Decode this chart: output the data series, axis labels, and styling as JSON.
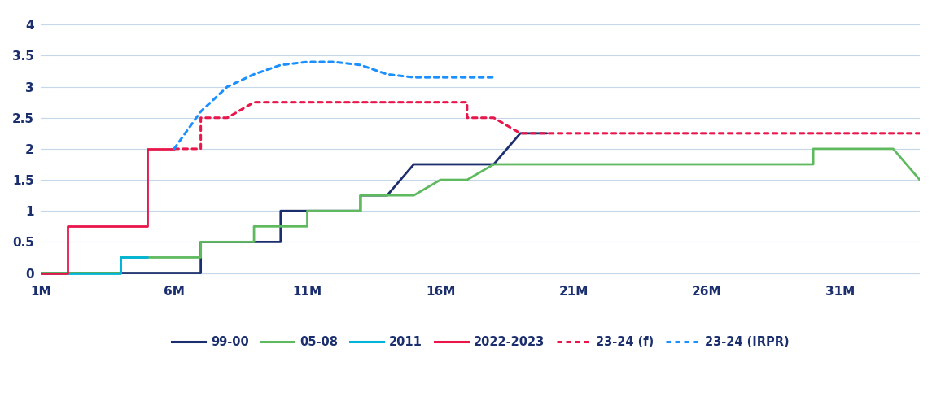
{
  "x_ticks": [
    1,
    6,
    11,
    16,
    21,
    26,
    31
  ],
  "x_tick_labels": [
    "1M",
    "6M",
    "11M",
    "16M",
    "21M",
    "26M",
    "31M"
  ],
  "x_min": 1,
  "x_max": 34,
  "y_ticks": [
    0,
    0.5,
    1,
    1.5,
    2,
    2.5,
    3,
    3.5,
    4
  ],
  "y_lim": [
    -0.1,
    4.2
  ],
  "series": {
    "99-00": {
      "x": [
        1,
        2,
        3,
        4,
        5,
        6,
        7,
        7,
        8,
        9,
        10,
        10,
        11,
        12,
        13,
        13,
        14,
        15,
        16,
        17,
        18,
        19,
        20
      ],
      "y": [
        0,
        0,
        0,
        0,
        0,
        0,
        0,
        0.5,
        0.5,
        0.5,
        0.5,
        1.0,
        1.0,
        1.0,
        1.0,
        1.25,
        1.25,
        1.75,
        1.75,
        1.75,
        1.75,
        2.25,
        2.25
      ],
      "color": "#1b2f6e",
      "linestyle": "solid",
      "linewidth": 2.0
    },
    "05-08": {
      "x": [
        1,
        2,
        3,
        4,
        4,
        5,
        6,
        7,
        7,
        8,
        9,
        9,
        10,
        11,
        11,
        12,
        13,
        13,
        14,
        15,
        16,
        17,
        18,
        19,
        20,
        21,
        22,
        23,
        24,
        25,
        26,
        27,
        28,
        29,
        30,
        30,
        31,
        32,
        33,
        34
      ],
      "y": [
        0,
        0,
        0,
        0,
        0.25,
        0.25,
        0.25,
        0.25,
        0.5,
        0.5,
        0.5,
        0.75,
        0.75,
        0.75,
        1.0,
        1.0,
        1.0,
        1.25,
        1.25,
        1.25,
        1.5,
        1.5,
        1.75,
        1.75,
        1.75,
        1.75,
        1.75,
        1.75,
        1.75,
        1.75,
        1.75,
        1.75,
        1.75,
        1.75,
        1.75,
        2.0,
        2.0,
        2.0,
        2.0,
        1.5
      ],
      "color": "#5fba5f",
      "linestyle": "solid",
      "linewidth": 2.0
    },
    "2011": {
      "x": [
        1,
        2,
        3,
        4,
        4,
        5
      ],
      "y": [
        0,
        0,
        0,
        0,
        0.25,
        0.25
      ],
      "color": "#00b4d8",
      "linestyle": "solid",
      "linewidth": 2.0
    },
    "2022-2023": {
      "x": [
        1,
        2,
        2,
        3,
        4,
        5,
        5,
        6
      ],
      "y": [
        0,
        0,
        0.75,
        0.75,
        0.75,
        0.75,
        2.0,
        2.0
      ],
      "color": "#e8164b",
      "linestyle": "solid",
      "linewidth": 2.0
    },
    "23-24 (f)": {
      "x": [
        6,
        7,
        7,
        8,
        9,
        10,
        11,
        12,
        13,
        14,
        15,
        16,
        17,
        17,
        18,
        19,
        20,
        21,
        22,
        23,
        24,
        25,
        26,
        27,
        28,
        29,
        30,
        31,
        32,
        33,
        34
      ],
      "y": [
        2.0,
        2.0,
        2.5,
        2.5,
        2.75,
        2.75,
        2.75,
        2.75,
        2.75,
        2.75,
        2.75,
        2.75,
        2.75,
        2.5,
        2.5,
        2.25,
        2.25,
        2.25,
        2.25,
        2.25,
        2.25,
        2.25,
        2.25,
        2.25,
        2.25,
        2.25,
        2.25,
        2.25,
        2.25,
        2.25,
        2.25
      ],
      "color": "#e8164b",
      "linestyle": "dotted",
      "linewidth": 2.2
    },
    "23-24 (IRPR)": {
      "x": [
        6,
        7,
        8,
        9,
        10,
        11,
        12,
        13,
        14,
        15,
        16,
        17,
        18
      ],
      "y": [
        2.0,
        2.6,
        3.0,
        3.2,
        3.35,
        3.4,
        3.4,
        3.35,
        3.2,
        3.15,
        3.15,
        3.15,
        3.15
      ],
      "color": "#1a8fff",
      "linestyle": "dotted",
      "linewidth": 2.2
    }
  },
  "legend_order": [
    "99-00",
    "05-08",
    "2011",
    "2022-2023",
    "23-24 (f)",
    "23-24 (IRPR)"
  ],
  "legend_colors": {
    "99-00": "#1b2f6e",
    "05-08": "#5fba5f",
    "2011": "#00b4d8",
    "2022-2023": "#e8164b",
    "23-24 (f)": "#e8164b",
    "23-24 (IRPR)": "#1a8fff"
  },
  "legend_linestyles": {
    "99-00": "solid",
    "05-08": "solid",
    "2011": "solid",
    "2022-2023": "solid",
    "23-24 (f)": "dotted",
    "23-24 (IRPR)": "dotted"
  },
  "axis_color": "#1b2f6e",
  "grid_color": "#c5d8ea",
  "background_color": "#ffffff"
}
